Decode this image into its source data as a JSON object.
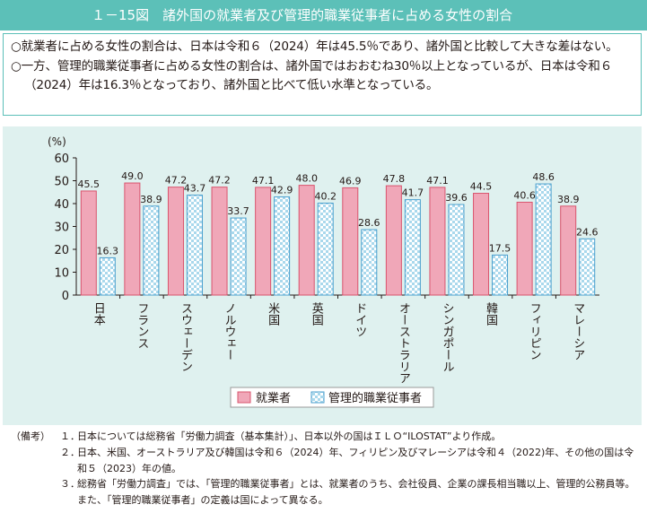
{
  "figure": {
    "title": "１－15図　諸外国の就業者及び管理的職業従事者に占める女性の割合"
  },
  "summary": [
    "○就業者に占める女性の割合は、日本は令和６（2024）年は45.5％であり、諸外国と比較して大きな差はない。",
    "○一方、管理的職業従事者に占める女性の割合は、諸外国ではおおむね30％以上となっているが、日本は令和６（2024）年は16.3％となっており、諸外国と比べて低い水準となっている。"
  ],
  "chart_data": {
    "type": "bar",
    "unit": "(%)",
    "categories": [
      "日本",
      "フランス",
      "スウェーデン",
      "ノルウェー",
      "米国",
      "英国",
      "ドイツ",
      "オーストラリア",
      "シンガポール",
      "韓国",
      "フィリピン",
      "マレーシア"
    ],
    "series": [
      {
        "name": "就業者",
        "values": [
          45.5,
          49.0,
          47.2,
          47.2,
          47.1,
          48.0,
          46.9,
          47.8,
          47.1,
          44.5,
          40.6,
          38.9
        ]
      },
      {
        "name": "管理的職業従事者",
        "values": [
          16.3,
          38.9,
          43.7,
          33.7,
          42.9,
          40.2,
          28.6,
          41.7,
          39.6,
          17.5,
          48.6,
          24.6
        ]
      }
    ],
    "ylim": [
      0,
      60
    ],
    "yticks": [
      0,
      10,
      20,
      30,
      40,
      50,
      60
    ],
    "value_labels": true,
    "legend_position": "bottom-center",
    "colors": {
      "employed": "#f0a7b8",
      "employed_edge": "#d9546e",
      "managers": "#a9d8ec",
      "managers_edge": "#4a9fce",
      "plot_bg": "#dff1ef"
    }
  },
  "notes": {
    "head": "（備考）",
    "items": [
      {
        "num": "１．",
        "text": "日本については総務省「労働力調査（基本集計）」、日本以外の国はＩＬＯ“ILOSTAT”より作成。"
      },
      {
        "num": "２．",
        "text": "日本、米国、オーストラリア及び韓国は令和６（2024）年、フィリピン及びマレーシアは令和４（2022)年、その他の国は令和５（2023）年の値。"
      },
      {
        "num": "３．",
        "text": "総務省「労働力調査」では、「管理的職業従事者」とは、就業者のうち、会社役員、企業の課長相当職以上、管理的公務員等。また、「管理的職業従事者」の定義は国によって異なる。"
      }
    ]
  }
}
